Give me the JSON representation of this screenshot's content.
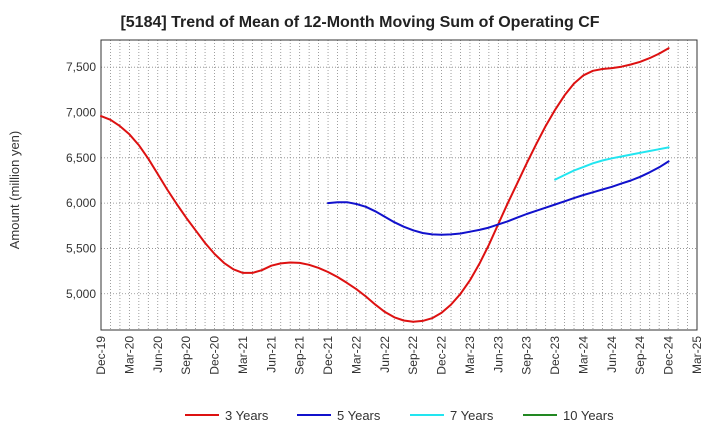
{
  "chart_data": {
    "type": "line",
    "title": "[5184]  Trend of Mean of 12-Month Moving Sum of Operating CF",
    "xlabel": "",
    "ylabel": "Amount (million yen)",
    "ylim": [
      4600,
      7800
    ],
    "yticks": [
      5000,
      5500,
      6000,
      6500,
      7000,
      7500
    ],
    "ytick_labels": [
      "5,000",
      "5,500",
      "6,000",
      "6,500",
      "7,000",
      "7,500"
    ],
    "x_range_months": [
      0,
      63
    ],
    "xticks": [
      {
        "m": 0,
        "label": "Dec-19"
      },
      {
        "m": 3,
        "label": "Mar-20"
      },
      {
        "m": 6,
        "label": "Jun-20"
      },
      {
        "m": 9,
        "label": "Sep-20"
      },
      {
        "m": 12,
        "label": "Dec-20"
      },
      {
        "m": 15,
        "label": "Mar-21"
      },
      {
        "m": 18,
        "label": "Jun-21"
      },
      {
        "m": 21,
        "label": "Sep-21"
      },
      {
        "m": 24,
        "label": "Dec-21"
      },
      {
        "m": 27,
        "label": "Mar-22"
      },
      {
        "m": 30,
        "label": "Jun-22"
      },
      {
        "m": 33,
        "label": "Sep-22"
      },
      {
        "m": 36,
        "label": "Dec-22"
      },
      {
        "m": 39,
        "label": "Mar-23"
      },
      {
        "m": 42,
        "label": "Jun-23"
      },
      {
        "m": 45,
        "label": "Sep-23"
      },
      {
        "m": 48,
        "label": "Dec-23"
      },
      {
        "m": 51,
        "label": "Mar-24"
      },
      {
        "m": 54,
        "label": "Jun-24"
      },
      {
        "m": 57,
        "label": "Sep-24"
      },
      {
        "m": 60,
        "label": "Dec-24"
      },
      {
        "m": 63,
        "label": "Mar-25"
      }
    ],
    "grid": true,
    "legend_position": "bottom",
    "series": [
      {
        "name": "3 Years",
        "color": "#dd1111",
        "points": [
          [
            0,
            6960
          ],
          [
            1,
            6920
          ],
          [
            2,
            6850
          ],
          [
            3,
            6760
          ],
          [
            4,
            6640
          ],
          [
            5,
            6490
          ],
          [
            6,
            6320
          ],
          [
            7,
            6150
          ],
          [
            8,
            5990
          ],
          [
            9,
            5840
          ],
          [
            10,
            5700
          ],
          [
            11,
            5560
          ],
          [
            12,
            5440
          ],
          [
            13,
            5340
          ],
          [
            14,
            5270
          ],
          [
            15,
            5230
          ],
          [
            16,
            5230
          ],
          [
            17,
            5260
          ],
          [
            18,
            5310
          ],
          [
            19,
            5335
          ],
          [
            20,
            5345
          ],
          [
            21,
            5340
          ],
          [
            22,
            5320
          ],
          [
            23,
            5285
          ],
          [
            24,
            5240
          ],
          [
            25,
            5185
          ],
          [
            26,
            5120
          ],
          [
            27,
            5050
          ],
          [
            28,
            4970
          ],
          [
            29,
            4880
          ],
          [
            30,
            4800
          ],
          [
            31,
            4740
          ],
          [
            32,
            4705
          ],
          [
            33,
            4690
          ],
          [
            34,
            4700
          ],
          [
            35,
            4730
          ],
          [
            36,
            4790
          ],
          [
            37,
            4880
          ],
          [
            38,
            5000
          ],
          [
            39,
            5150
          ],
          [
            40,
            5330
          ],
          [
            41,
            5540
          ],
          [
            42,
            5770
          ],
          [
            43,
            6000
          ],
          [
            44,
            6220
          ],
          [
            45,
            6440
          ],
          [
            46,
            6650
          ],
          [
            47,
            6850
          ],
          [
            48,
            7030
          ],
          [
            49,
            7190
          ],
          [
            50,
            7320
          ],
          [
            51,
            7410
          ],
          [
            52,
            7460
          ],
          [
            53,
            7480
          ],
          [
            54,
            7490
          ],
          [
            55,
            7505
          ],
          [
            56,
            7530
          ],
          [
            57,
            7560
          ],
          [
            58,
            7600
          ],
          [
            59,
            7650
          ],
          [
            60,
            7710
          ]
        ]
      },
      {
        "name": "5 Years",
        "color": "#1111cc",
        "points": [
          [
            24,
            6000
          ],
          [
            25,
            6010
          ],
          [
            26,
            6010
          ],
          [
            27,
            5990
          ],
          [
            28,
            5960
          ],
          [
            29,
            5910
          ],
          [
            30,
            5850
          ],
          [
            31,
            5790
          ],
          [
            32,
            5740
          ],
          [
            33,
            5700
          ],
          [
            34,
            5670
          ],
          [
            35,
            5655
          ],
          [
            36,
            5650
          ],
          [
            37,
            5655
          ],
          [
            38,
            5665
          ],
          [
            39,
            5685
          ],
          [
            40,
            5705
          ],
          [
            41,
            5730
          ],
          [
            42,
            5765
          ],
          [
            43,
            5800
          ],
          [
            44,
            5840
          ],
          [
            45,
            5880
          ],
          [
            46,
            5915
          ],
          [
            47,
            5950
          ],
          [
            48,
            5985
          ],
          [
            49,
            6020
          ],
          [
            50,
            6055
          ],
          [
            51,
            6090
          ],
          [
            52,
            6120
          ],
          [
            53,
            6150
          ],
          [
            54,
            6180
          ],
          [
            55,
            6215
          ],
          [
            56,
            6250
          ],
          [
            57,
            6290
          ],
          [
            58,
            6340
          ],
          [
            59,
            6395
          ],
          [
            60,
            6460
          ]
        ]
      },
      {
        "name": "7 Years",
        "color": "#22e5f0",
        "points": [
          [
            48,
            6260
          ],
          [
            49,
            6310
          ],
          [
            50,
            6360
          ],
          [
            51,
            6400
          ],
          [
            52,
            6440
          ],
          [
            53,
            6470
          ],
          [
            54,
            6495
          ],
          [
            55,
            6515
          ],
          [
            56,
            6535
          ],
          [
            57,
            6555
          ],
          [
            58,
            6575
          ],
          [
            59,
            6595
          ],
          [
            60,
            6615
          ]
        ]
      },
      {
        "name": "10 Years",
        "color": "#228822",
        "points": []
      }
    ]
  }
}
